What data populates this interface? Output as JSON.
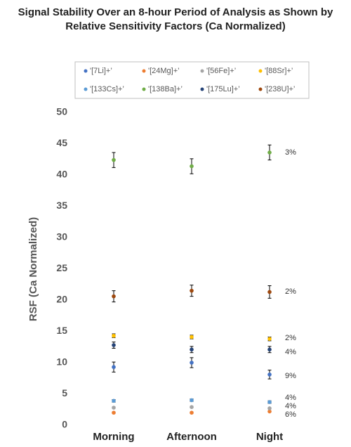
{
  "chart_data": {
    "type": "errorbar-dot",
    "title": [
      "Signal Stability Over an 8-hour Period of Analysis as Shown by",
      "Relative Sensitivity Factors (Ca Normalized)"
    ],
    "y_label": "RSF (Ca Normalized)",
    "categories": [
      "Morning",
      "Afternoon",
      "Night"
    ],
    "ylim": [
      0,
      50
    ],
    "yticks": [
      0,
      5,
      10,
      15,
      20,
      25,
      30,
      35,
      40,
      45,
      50
    ],
    "grid": false,
    "series": [
      {
        "name": "'[7Li]+’",
        "color": "#4472c4",
        "values": [
          9.3,
          10.0,
          8.1
        ],
        "errors": [
          0.8,
          0.8,
          0.7
        ]
      },
      {
        "name": "'[24Mg]+’",
        "color": "#ed7d31",
        "values": [
          2.0,
          2.0,
          2.2
        ],
        "errors": [
          0.1,
          0.1,
          0.1
        ]
      },
      {
        "name": "'[56Fe]+’",
        "color": "#a5a5a5",
        "values": [
          2.8,
          2.9,
          2.7
        ],
        "errors": [
          0.1,
          0.1,
          0.1
        ]
      },
      {
        "name": "'[88Sr]+’",
        "color": "#ffc000",
        "values": [
          14.3,
          14.1,
          13.8
        ],
        "errors": [
          0.3,
          0.3,
          0.3
        ]
      },
      {
        "name": "'[133Cs]+’",
        "color": "#5b9bd5",
        "values": [
          3.9,
          4.0,
          3.7
        ],
        "errors": [
          0.2,
          0.2,
          0.2
        ]
      },
      {
        "name": "'[138Ba]+’",
        "color": "#70ad47",
        "values": [
          42.4,
          41.4,
          43.6
        ],
        "errors": [
          1.2,
          1.2,
          1.2
        ]
      },
      {
        "name": "'[175Lu]+’",
        "color": "#264478",
        "values": [
          12.8,
          12.1,
          12.1
        ],
        "errors": [
          0.5,
          0.5,
          0.5
        ]
      },
      {
        "name": "'[238U]+’",
        "color": "#9e480e",
        "values": [
          20.6,
          21.5,
          21.3
        ],
        "errors": [
          0.9,
          0.9,
          1.0
        ]
      }
    ],
    "annotations": [
      "3%",
      "2%",
      "2%",
      "4%",
      "9%",
      "4%",
      "4%",
      "6%"
    ]
  }
}
